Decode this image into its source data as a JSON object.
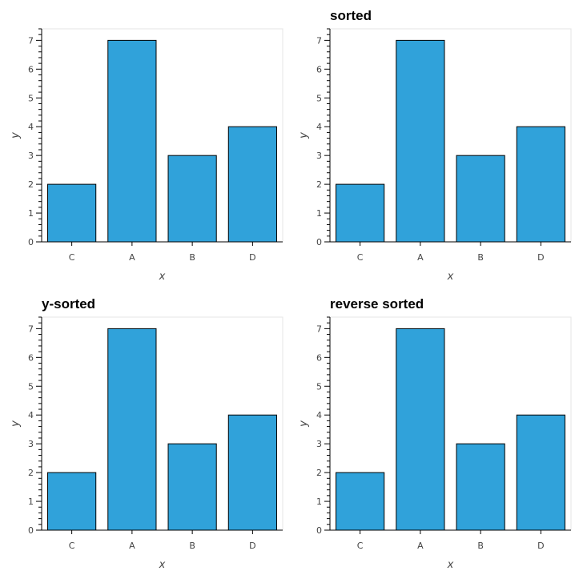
{
  "colors": {
    "bar": "#30a2da",
    "bar_stroke": "#000000",
    "axis": "#000000",
    "frame": "#e5e5e5"
  },
  "chart_data": [
    {
      "type": "bar",
      "title": "",
      "categories": [
        "C",
        "A",
        "B",
        "D"
      ],
      "values": [
        2,
        7,
        3,
        4
      ],
      "xlabel": "x",
      "ylabel": "y",
      "ylim": [
        0,
        7.4
      ],
      "yticks": [
        0,
        1,
        2,
        3,
        4,
        5,
        6,
        7
      ],
      "grid": false
    },
    {
      "type": "bar",
      "title": "sorted",
      "categories": [
        "C",
        "A",
        "B",
        "D"
      ],
      "values": [
        2,
        7,
        3,
        4
      ],
      "xlabel": "x",
      "ylabel": "y",
      "ylim": [
        0,
        7.4
      ],
      "yticks": [
        0,
        1,
        2,
        3,
        4,
        5,
        6,
        7
      ],
      "grid": false
    },
    {
      "type": "bar",
      "title": "y-sorted",
      "categories": [
        "C",
        "A",
        "B",
        "D"
      ],
      "values": [
        2,
        7,
        3,
        4
      ],
      "xlabel": "x",
      "ylabel": "y",
      "ylim": [
        0,
        7.4
      ],
      "yticks": [
        0,
        1,
        2,
        3,
        4,
        5,
        6,
        7
      ],
      "grid": false
    },
    {
      "type": "bar",
      "title": "reverse sorted",
      "categories": [
        "C",
        "A",
        "B",
        "D"
      ],
      "values": [
        2,
        7,
        3,
        4
      ],
      "xlabel": "x",
      "ylabel": "y",
      "ylim": [
        0,
        7.4
      ],
      "yticks": [
        0,
        1,
        2,
        3,
        4,
        5,
        6,
        7
      ],
      "grid": false
    }
  ]
}
